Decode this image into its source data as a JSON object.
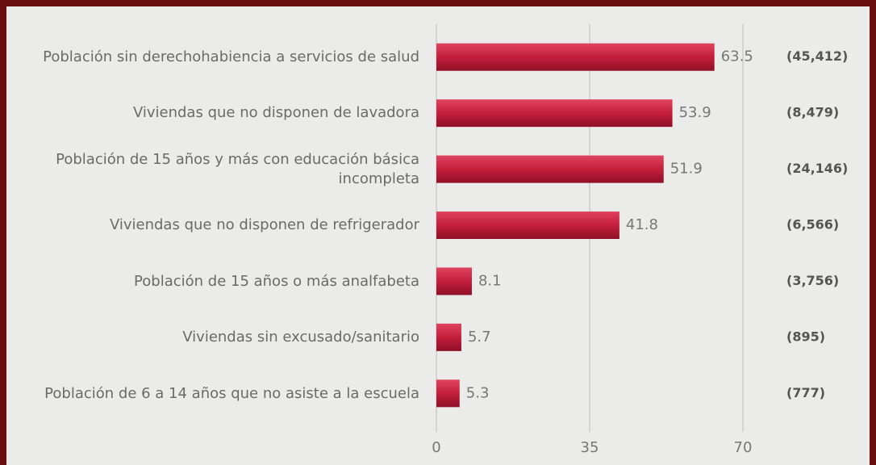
{
  "chart_data": {
    "type": "barh",
    "categories": [
      "Población sin derechohabiencia a servicios de salud",
      "Viviendas que no disponen de lavadora",
      "Población de 15 años y más con educación básica incompleta",
      "Viviendas que no disponen de refrigerador",
      "Población de 15 años o más analfabeta",
      "Viviendas sin excusado/sanitario",
      "Población de 6 a 14 años que no asiste a la escuela"
    ],
    "values": [
      63.5,
      53.9,
      51.9,
      41.8,
      8.1,
      5.7,
      5.3
    ],
    "counts": [
      "(45,412)",
      "(8,479)",
      "(24,146)",
      "(6,566)",
      "(3,756)",
      "(895)",
      "(777)"
    ],
    "color": "#c41e3a",
    "xlim": [
      0,
      70
    ],
    "xticks": [
      0,
      35,
      70
    ],
    "grid": true
  }
}
